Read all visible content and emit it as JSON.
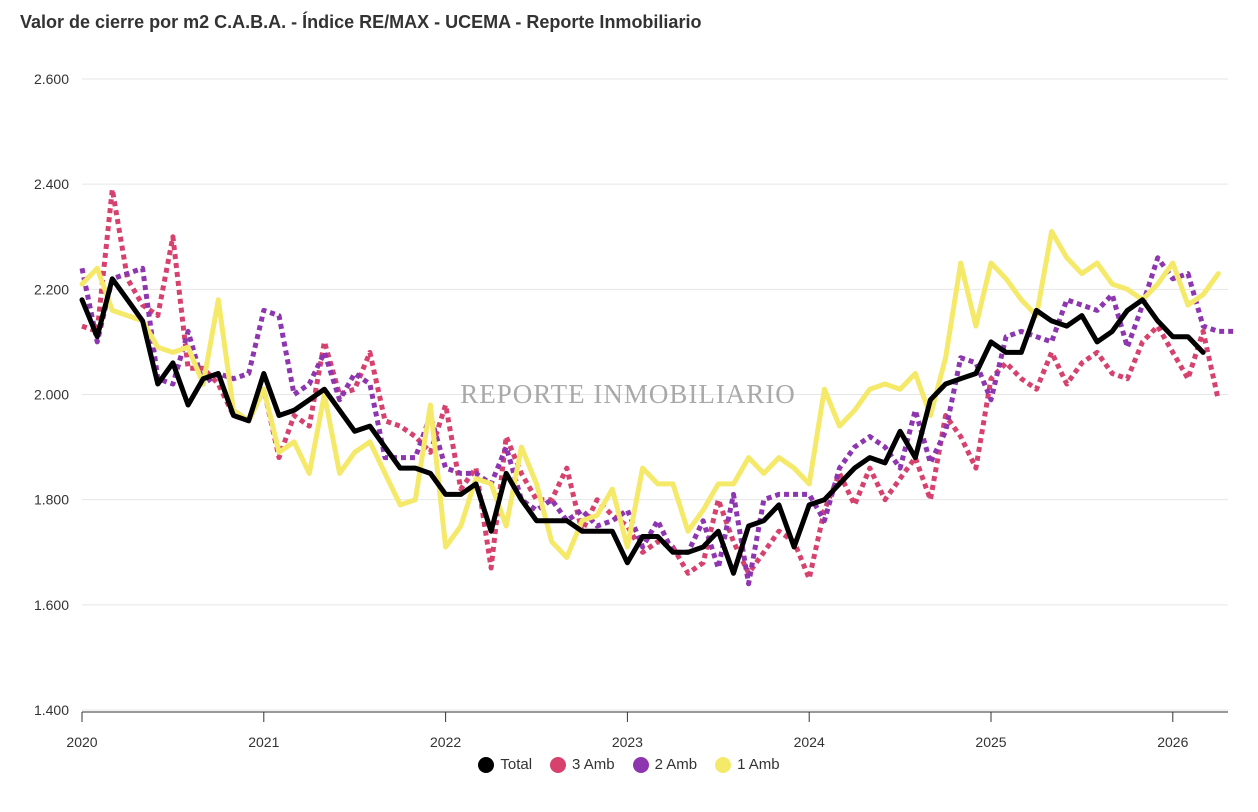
{
  "chart_data": {
    "type": "line",
    "title": "Valor de cierre por m2 C.A.B.A. - Índice RE/MAX - UCEMA - Reporte Inmobiliario",
    "watermark": "REPORTE INMOBILIARIO",
    "x_start": "2020-01",
    "x_ticks": [
      "2020",
      "2021",
      "2022",
      "2023",
      "2024",
      "2025",
      "2026"
    ],
    "ylim": [
      1400,
      2600
    ],
    "y_ticks": [
      "1.400",
      "1.600",
      "1.800",
      "2.000",
      "2.200",
      "2.400",
      "2.600"
    ],
    "grid": true,
    "legend_position": "bottom",
    "series": [
      {
        "name": "3 Amb",
        "color": "#d6426d",
        "dashed": true,
        "values": [
          2130,
          2120,
          2390,
          2220,
          2170,
          2150,
          2300,
          2050,
          2050,
          2020,
          1960,
          1950,
          2010,
          1880,
          1960,
          1940,
          2100,
          2000,
          2010,
          2080,
          1950,
          1940,
          1920,
          1890,
          1980,
          1820,
          1860,
          1670,
          1920,
          1850,
          1800,
          1800,
          1860,
          1740,
          1800,
          1770,
          1750,
          1700,
          1720,
          1710,
          1660,
          1680,
          1800,
          1720,
          1660,
          1700,
          1740,
          1720,
          1650,
          1780,
          1850,
          1790,
          1860,
          1800,
          1840,
          1880,
          1800,
          1960,
          1920,
          1860,
          2030,
          2060,
          2030,
          2010,
          2080,
          2020,
          2060,
          2080,
          2040,
          2030,
          2100,
          2130,
          2080,
          2030,
          2120,
          1990
        ]
      },
      {
        "name": "2 Amb",
        "color": "#8e35b0",
        "dashed": true,
        "values": [
          2240,
          2100,
          2220,
          2230,
          2240,
          2030,
          2020,
          2120,
          2020,
          2040,
          2030,
          2040,
          2160,
          2150,
          2000,
          2020,
          2080,
          1990,
          2040,
          2020,
          1880,
          1880,
          1880,
          1960,
          1860,
          1850,
          1850,
          1830,
          1900,
          1800,
          1780,
          1800,
          1760,
          1780,
          1750,
          1760,
          1780,
          1710,
          1760,
          1700,
          1700,
          1760,
          1670,
          1810,
          1640,
          1800,
          1810,
          1810,
          1810,
          1760,
          1860,
          1900,
          1920,
          1900,
          1860,
          1970,
          1870,
          1930,
          2070,
          2060,
          1990,
          2110,
          2120,
          2110,
          2100,
          2180,
          2170,
          2160,
          2190,
          2090,
          2170,
          2260,
          2220,
          2230,
          2130,
          2120,
          2120
        ]
      },
      {
        "name": "1 Amb",
        "color": "#f5e96a",
        "dashed": false,
        "values": [
          2210,
          2240,
          2160,
          2150,
          2140,
          2090,
          2080,
          2090,
          2020,
          2180,
          1970,
          1950,
          2010,
          1890,
          1910,
          1850,
          2000,
          1850,
          1890,
          1910,
          1850,
          1790,
          1800,
          1980,
          1710,
          1750,
          1840,
          1830,
          1750,
          1900,
          1830,
          1720,
          1690,
          1760,
          1770,
          1820,
          1710,
          1860,
          1830,
          1830,
          1740,
          1780,
          1830,
          1830,
          1880,
          1850,
          1880,
          1860,
          1830,
          2010,
          1940,
          1970,
          2010,
          2020,
          2010,
          2040,
          1960,
          2070,
          2250,
          2130,
          2250,
          2220,
          2180,
          2150,
          2310,
          2260,
          2230,
          2250,
          2210,
          2200,
          2180,
          2210,
          2250,
          2170,
          2190,
          2230
        ]
      },
      {
        "name": "Total",
        "color": "#000000",
        "dashed": false,
        "values": [
          2180,
          2110,
          2220,
          2180,
          2140,
          2020,
          2060,
          1980,
          2030,
          2040,
          1960,
          1950,
          2040,
          1960,
          1970,
          1990,
          2010,
          1970,
          1930,
          1940,
          1900,
          1860,
          1860,
          1850,
          1810,
          1810,
          1830,
          1740,
          1850,
          1800,
          1760,
          1760,
          1760,
          1740,
          1740,
          1740,
          1680,
          1730,
          1730,
          1700,
          1700,
          1710,
          1740,
          1660,
          1750,
          1760,
          1790,
          1710,
          1790,
          1800,
          1830,
          1860,
          1880,
          1870,
          1930,
          1880,
          1990,
          2020,
          2030,
          2040,
          2100,
          2080,
          2080,
          2160,
          2140,
          2130,
          2150,
          2100,
          2120,
          2160,
          2180,
          2140,
          2110,
          2110,
          2080
        ]
      }
    ],
    "legend": [
      {
        "name": "Total",
        "color": "#000000"
      },
      {
        "name": "3 Amb",
        "color": "#d6426d"
      },
      {
        "name": "2 Amb",
        "color": "#8e35b0"
      },
      {
        "name": "1 Amb",
        "color": "#f5e96a"
      }
    ]
  }
}
